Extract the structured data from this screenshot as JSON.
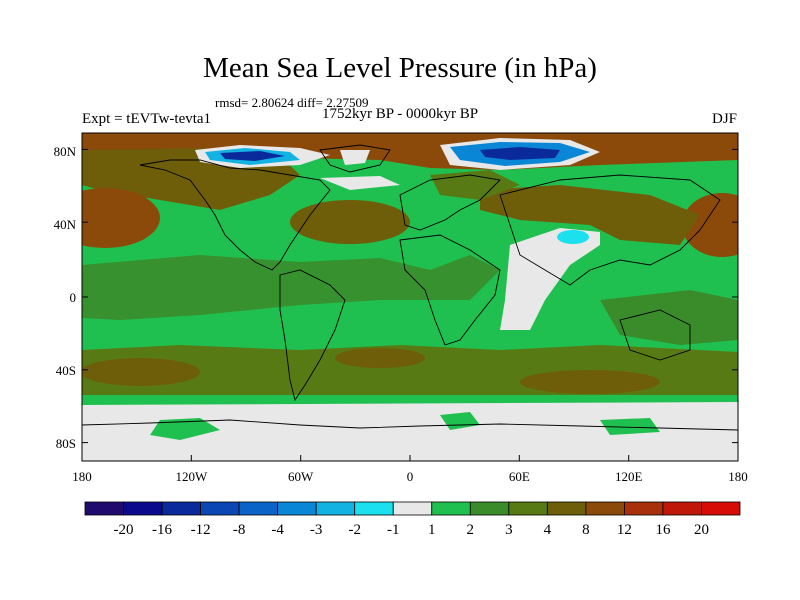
{
  "title": "Mean Sea Level Pressure (in hPa)",
  "stats": "rmsd= 2.80624 diff= 2.27509",
  "left_label": "Expt = tEVTw-tevta1",
  "center_label": "1752kyr BP - 0000kyr BP",
  "right_label": "DJF",
  "lat_ticks": [
    {
      "value": 80,
      "label": "80N"
    },
    {
      "value": 40,
      "label": "40N"
    },
    {
      "value": 0,
      "label": "0"
    },
    {
      "value": -40,
      "label": "40S"
    },
    {
      "value": -80,
      "label": "80S"
    }
  ],
  "lon_ticks": [
    {
      "value": -180,
      "label": "180"
    },
    {
      "value": -120,
      "label": "120W"
    },
    {
      "value": -60,
      "label": "60W"
    },
    {
      "value": 0,
      "label": "0"
    },
    {
      "value": 60,
      "label": "60E"
    },
    {
      "value": 120,
      "label": "120E"
    },
    {
      "value": 180,
      "label": "180"
    }
  ],
  "colorbar": {
    "colors": [
      "#200a6e",
      "#0c0a8c",
      "#0a2a9c",
      "#0a46b4",
      "#0a64c8",
      "#0a86d6",
      "#12b2e2",
      "#1ce0ee",
      "#e8e8e8",
      "#20c050",
      "#3a8c2a",
      "#587a14",
      "#6e5e0a",
      "#8c4a0a",
      "#a8300a",
      "#c01808",
      "#d80c06"
    ],
    "labels": [
      "-20",
      "-16",
      "-12",
      "-8",
      "-4",
      "-3",
      "-2",
      "-1",
      "1",
      "2",
      "3",
      "4",
      "8",
      "12",
      "16",
      "20"
    ]
  },
  "map_colors": {
    "white": "#e8e8e8",
    "green": "#20c050",
    "dkgreen": "#3a8c2a",
    "olive": "#587a14",
    "brown": "#6e5e0a",
    "orange": "#8c4a0a",
    "cyan": "#1ce0ee",
    "ltblue": "#12b2e2",
    "blue": "#0a86d6",
    "navy": "#0a2a9c"
  }
}
